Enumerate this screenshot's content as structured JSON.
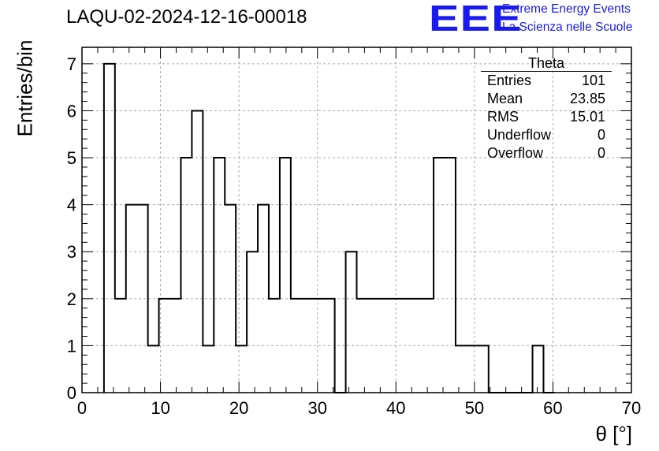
{
  "header": {
    "title": "LAQU-02-2024-12-16-00018",
    "logo_text": "EEE",
    "logo_line1": "Extreme Energy Events",
    "logo_line2": "La Scienza nelle Scuole"
  },
  "stats": {
    "title": "Theta",
    "rows": [
      {
        "label": "Entries",
        "value": "101"
      },
      {
        "label": "Mean",
        "value": "23.85"
      },
      {
        "label": "RMS",
        "value": "15.01"
      },
      {
        "label": "Underflow",
        "value": "0"
      },
      {
        "label": "Overflow",
        "value": "0"
      }
    ]
  },
  "colors": {
    "logo": "#1a1aee",
    "line": "#000000",
    "grid": "#aaaaaa"
  },
  "chart_data": {
    "type": "histogram",
    "title": "LAQU-02-2024-12-16-00018",
    "xlabel": "θ [°]",
    "ylabel": "Entries/bin",
    "xlim": [
      0,
      70
    ],
    "ylim": [
      0,
      7.35
    ],
    "grid": true,
    "xticks": [
      "0",
      "10",
      "20",
      "30",
      "40",
      "50",
      "60",
      "70"
    ],
    "yticks": [
      "0",
      "1",
      "2",
      "3",
      "4",
      "5",
      "6",
      "7"
    ],
    "bin_width": 1.4,
    "bin_edges_start": 2.8,
    "values": [
      7,
      2,
      4,
      4,
      1,
      2,
      2,
      5,
      6,
      1,
      5,
      4,
      1,
      3,
      4,
      2,
      5,
      2,
      2,
      2,
      2,
      0,
      3,
      2,
      2,
      2,
      2,
      2,
      2,
      2,
      5,
      5,
      1,
      1,
      1,
      0,
      0,
      0,
      0,
      1,
      0
    ],
    "legend": "top-right"
  }
}
